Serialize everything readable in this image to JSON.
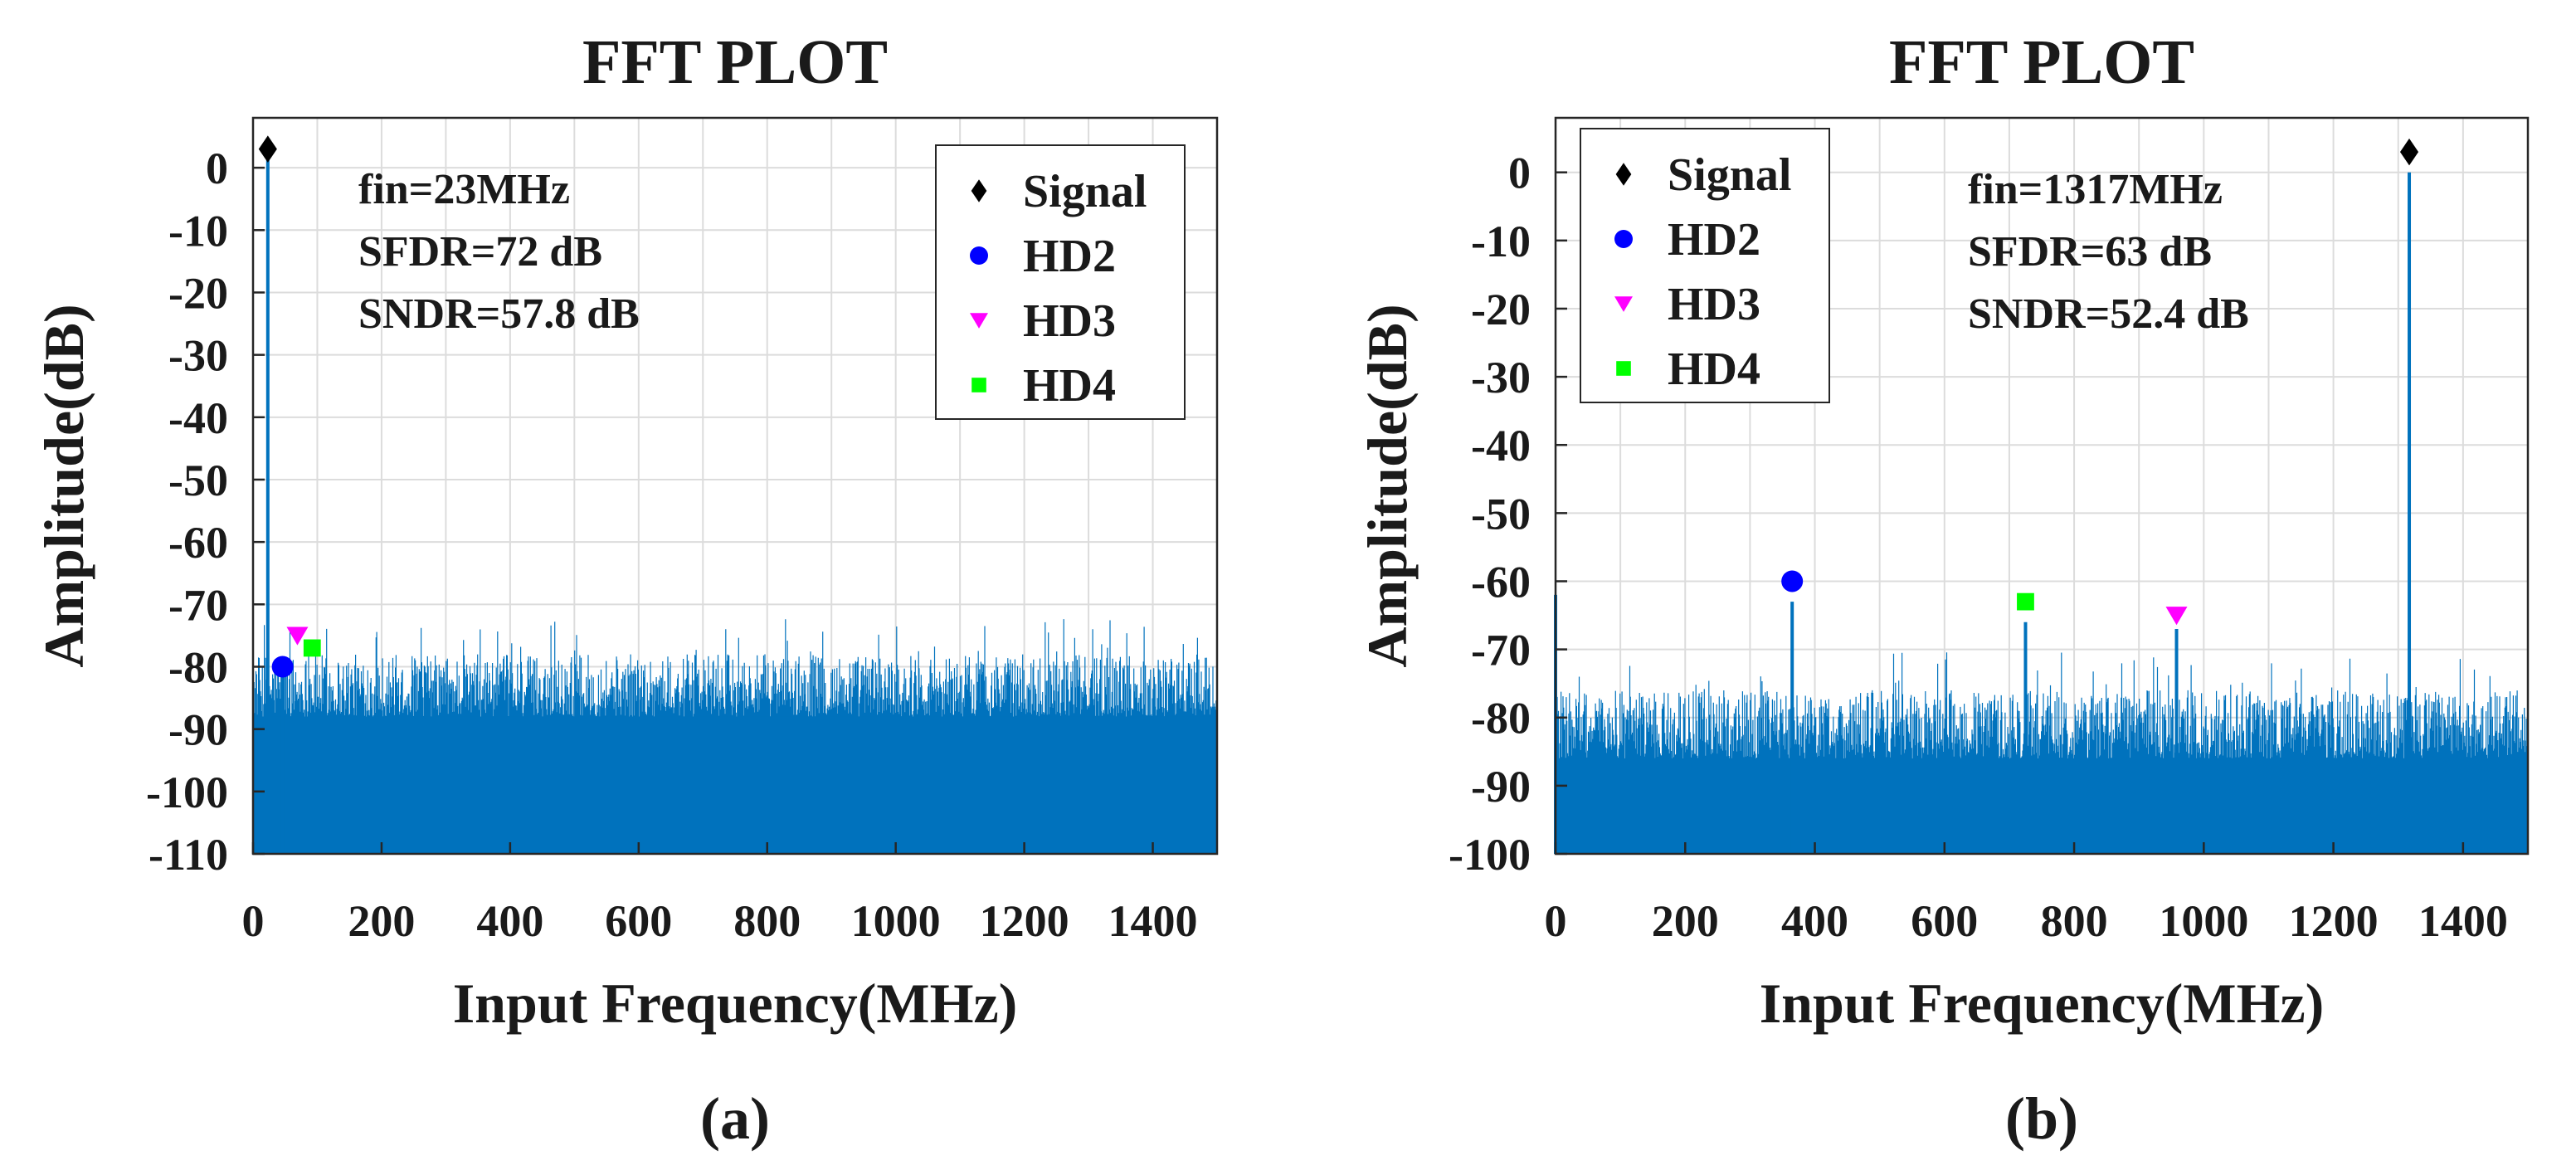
{
  "chart_data": [
    {
      "type": "line",
      "panel_label": "(a)",
      "title": "FFT PLOT",
      "xlabel": "Input Frequency(MHz)",
      "ylabel": "Amplitude(dB)",
      "xlim": [
        0,
        1500
      ],
      "ylim": [
        -110,
        8
      ],
      "xticks": [
        0,
        200,
        400,
        600,
        800,
        1000,
        1200,
        1400
      ],
      "xtick_labels": [
        "0",
        "200",
        "400",
        "600",
        "800",
        "1000",
        "1200",
        "1400"
      ],
      "yticks": [
        0,
        -10,
        -20,
        -30,
        -40,
        -50,
        -60,
        -70,
        -80,
        -90,
        -100,
        -110
      ],
      "ytick_labels": [
        "0",
        "-10",
        "-20",
        "-30",
        "-40",
        "-50",
        "-60",
        "-70",
        "-80",
        "-90",
        "-100",
        "-110"
      ],
      "grid": true,
      "color": "#0072bd",
      "noise_floor": {
        "min_db": -110,
        "typical_top_db": [
          -88,
          -78
        ],
        "max_db": -72
      },
      "tones": [
        {
          "x": 23,
          "y": 3
        },
        {
          "x": 46,
          "y": -80
        }
      ],
      "annotations": [
        "fin=23MHz",
        "SFDR=72 dB",
        "SNDR=57.8 dB"
      ],
      "legend": {
        "position": "top-right",
        "entries": [
          {
            "label": "Signal",
            "marker": "diamond",
            "color": "#000000"
          },
          {
            "label": "HD2",
            "marker": "circle",
            "color": "#0000ff"
          },
          {
            "label": "HD3",
            "marker": "triangle-down",
            "color": "#ff00ff"
          },
          {
            "label": "HD4",
            "marker": "square",
            "color": "#00ff00"
          }
        ]
      },
      "markers": [
        {
          "name": "Signal",
          "x": 23,
          "y": 3
        },
        {
          "name": "HD2",
          "x": 46,
          "y": -80
        },
        {
          "name": "HD3",
          "x": 69,
          "y": -75
        },
        {
          "name": "HD4",
          "x": 92,
          "y": -77
        }
      ]
    },
    {
      "type": "line",
      "panel_label": "(b)",
      "title": "FFT PLOT",
      "xlabel": "Input Frequency(MHz)",
      "ylabel": "Amplitude(dB)",
      "xlim": [
        0,
        1500
      ],
      "ylim": [
        -100,
        8
      ],
      "xticks": [
        0,
        200,
        400,
        600,
        800,
        1000,
        1200,
        1400
      ],
      "xtick_labels": [
        "0",
        "200",
        "400",
        "600",
        "800",
        "1000",
        "1200",
        "1400"
      ],
      "yticks": [
        0,
        -10,
        -20,
        -30,
        -40,
        -50,
        -60,
        -70,
        -80,
        -90,
        -100
      ],
      "ytick_labels": [
        "0",
        "-10",
        "-20",
        "-30",
        "-40",
        "-50",
        "-60",
        "-70",
        "-80",
        "-90",
        "-100"
      ],
      "grid": true,
      "color": "#0072bd",
      "noise_floor": {
        "min_db": -100,
        "typical_top_db": [
          -86,
          -76
        ],
        "max_db": -70
      },
      "tones": [
        {
          "x": 0,
          "y": -62
        },
        {
          "x": 365,
          "y": -63
        },
        {
          "x": 725,
          "y": -66
        },
        {
          "x": 958,
          "y": -67
        },
        {
          "x": 1317,
          "y": 0
        }
      ],
      "annotations": [
        "fin=1317MHz",
        "SFDR=63 dB",
        "SNDR=52.4 dB"
      ],
      "legend": {
        "position": "top-left",
        "entries": [
          {
            "label": "Signal",
            "marker": "diamond",
            "color": "#000000"
          },
          {
            "label": "HD2",
            "marker": "circle",
            "color": "#0000ff"
          },
          {
            "label": "HD3",
            "marker": "triangle-down",
            "color": "#ff00ff"
          },
          {
            "label": "HD4",
            "marker": "square",
            "color": "#00ff00"
          }
        ]
      },
      "markers": [
        {
          "name": "Signal",
          "x": 1317,
          "y": 3
        },
        {
          "name": "HD2",
          "x": 365,
          "y": -60
        },
        {
          "name": "HD3",
          "x": 958,
          "y": -65
        },
        {
          "name": "HD4",
          "x": 725,
          "y": -63
        }
      ]
    }
  ]
}
